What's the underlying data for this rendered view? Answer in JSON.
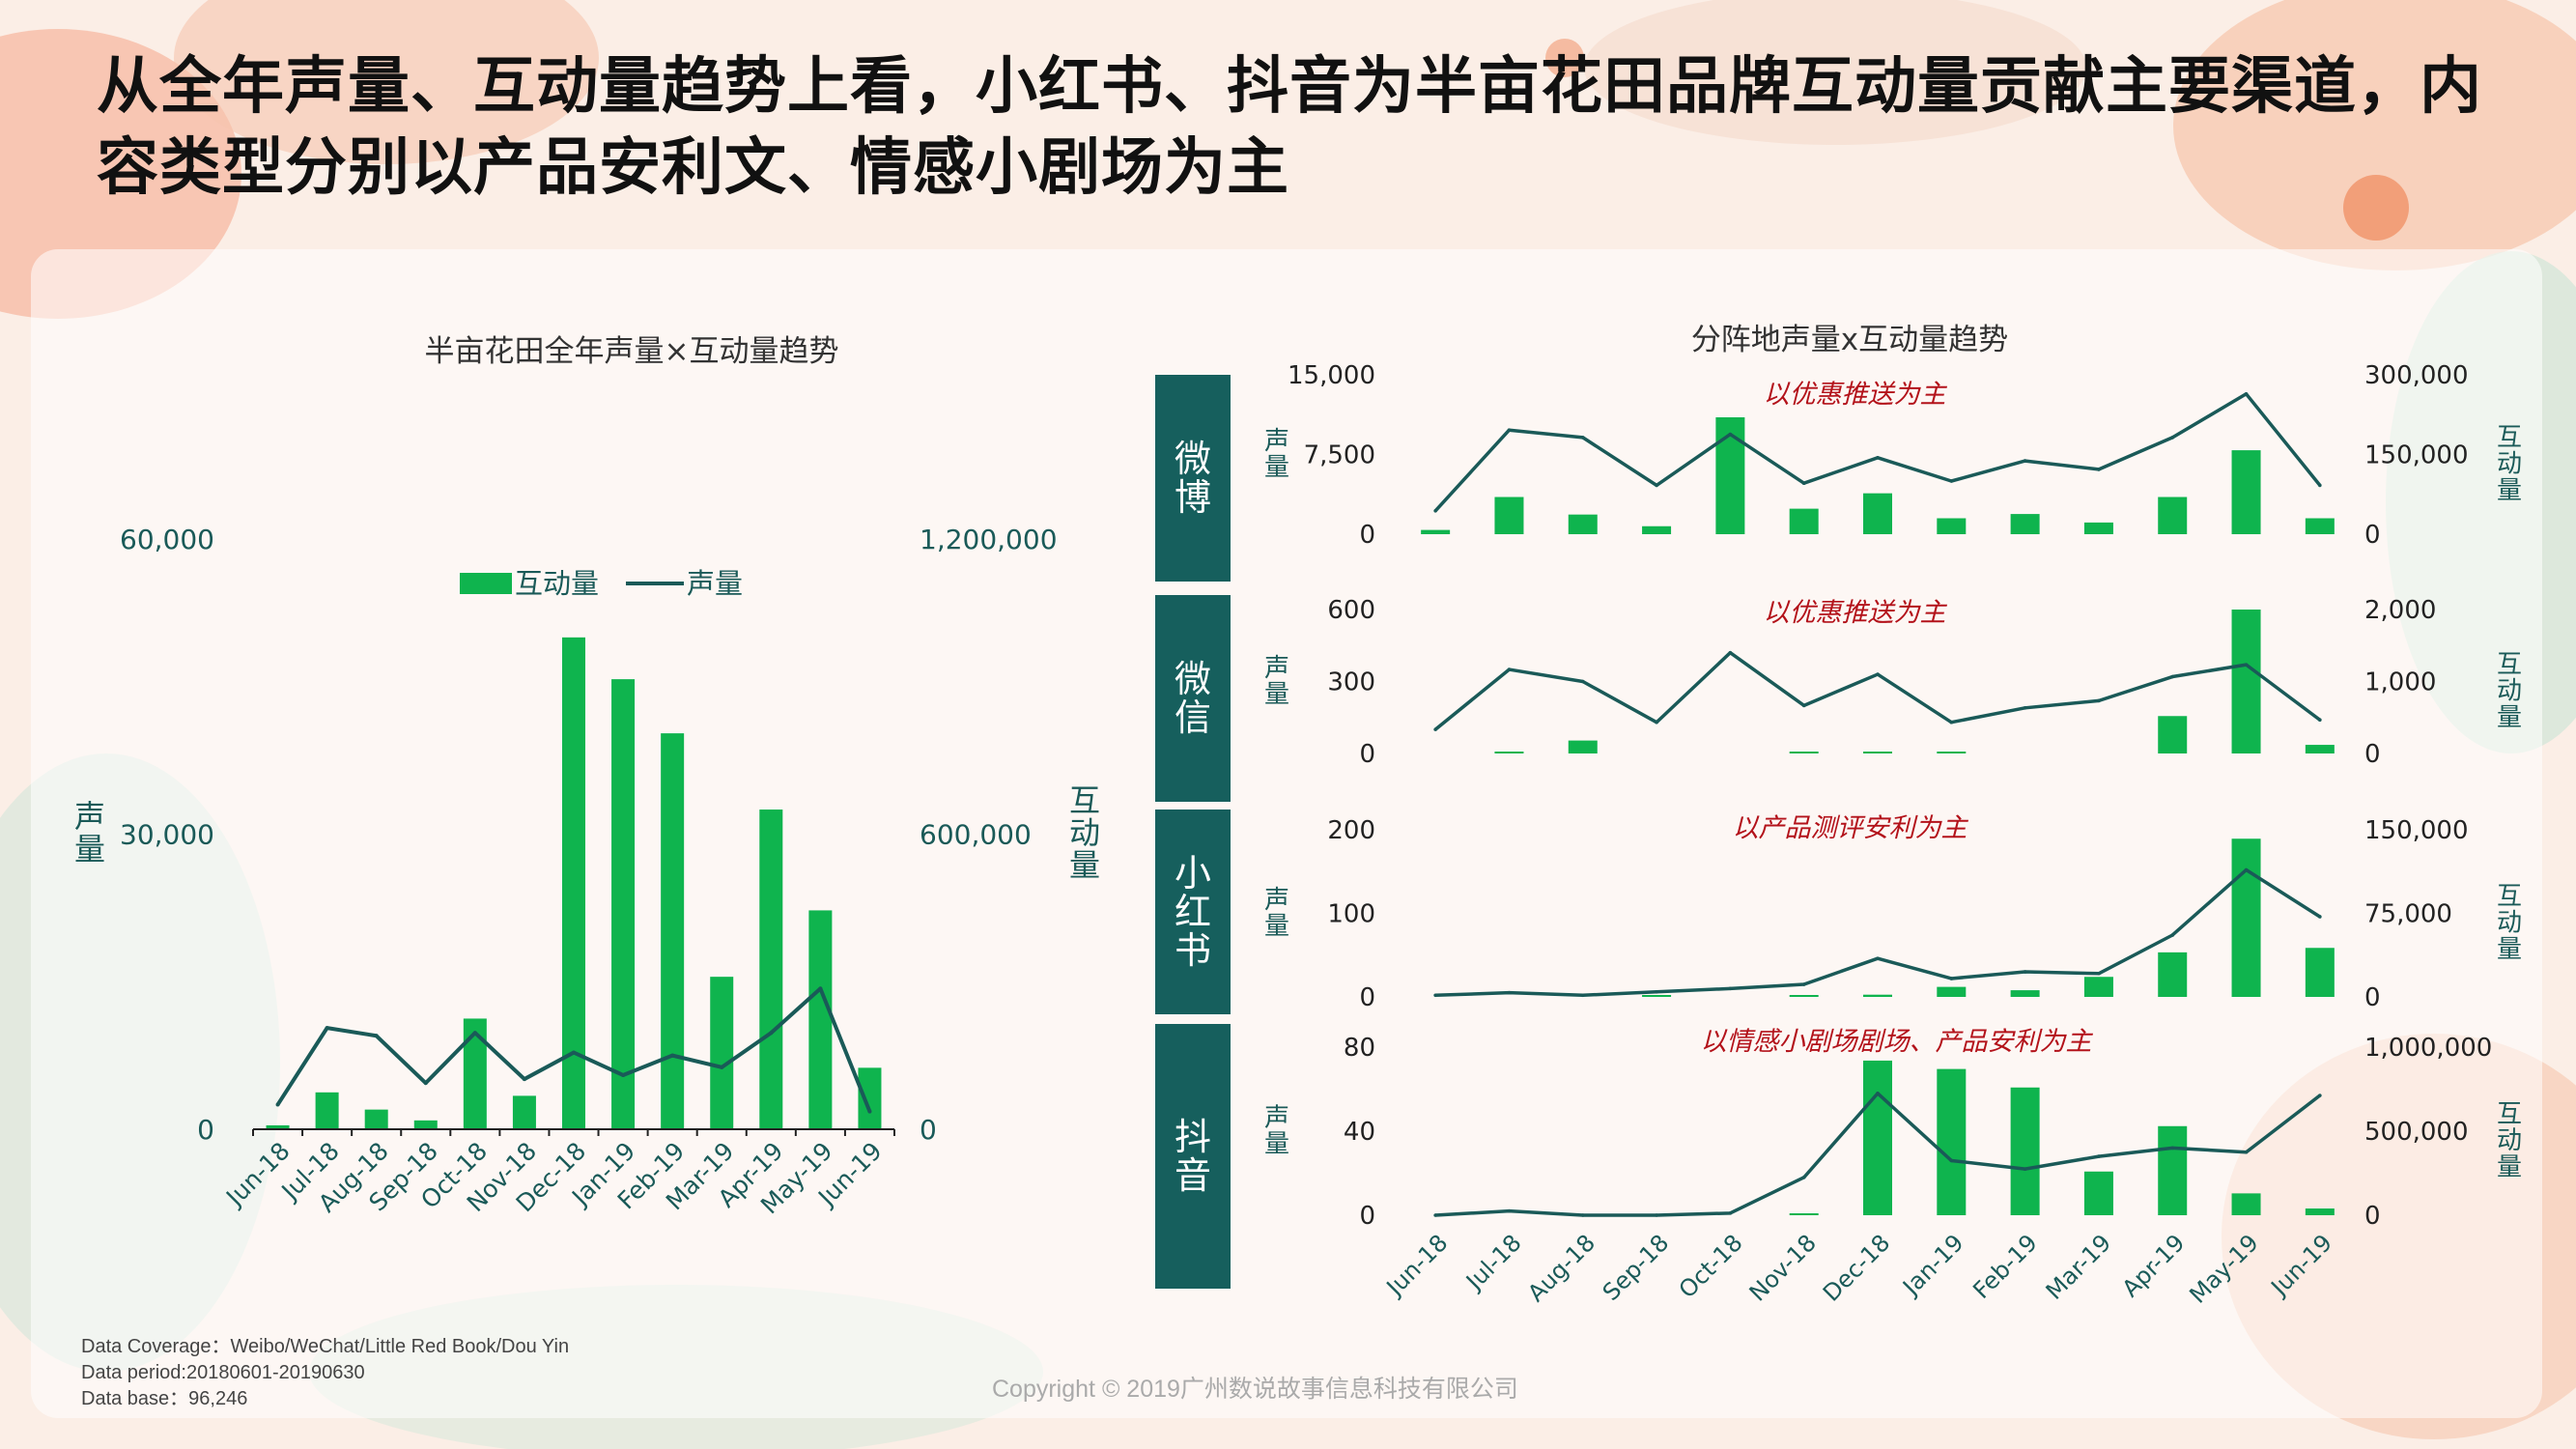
{
  "title": "从全年声量、互动量趋势上看，小红书、抖音为半亩花田品牌互动量贡献主要渠道，内容类型分别以产品安利文、情感小剧场为主",
  "colors": {
    "bar": "#0fb44e",
    "line": "#1a5a58",
    "channel_box": "#165f5d",
    "note": "#b3121a"
  },
  "footnotes": [
    "Data Coverage：Weibo/WeChat/Little Red Book/Dou Yin",
    "Data period:20180601-20190630",
    "Data base：96,246"
  ],
  "copyright": "Copyright © 2019广州数说故事信息科技有限公司",
  "chart_data": [
    {
      "type": "bar+line",
      "title": "半亩花田全年声量×互动量趋势",
      "categories": [
        "Jun-18",
        "Jul-18",
        "Aug-18",
        "Sep-18",
        "Oct-18",
        "Nov-18",
        "Dec-18",
        "Jan-19",
        "Feb-19",
        "Mar-19",
        "Apr-19",
        "May-19",
        "Jun-19"
      ],
      "ylabel_left": "声量",
      "ylabel_right": "互动量",
      "yticks_left": [
        "60,000",
        "30,000",
        "0"
      ],
      "yticks_right": [
        "1,200,000",
        "600,000",
        "0"
      ],
      "ylim_left": [
        0,
        60000
      ],
      "ylim_right": [
        0,
        1200000
      ],
      "legend": [
        "互动量",
        "声量"
      ],
      "series": [
        {
          "name": "互动量",
          "type": "bar",
          "axis": "right",
          "values": [
            8000,
            75000,
            40000,
            18000,
            225000,
            68000,
            1000000,
            915000,
            805000,
            310000,
            650000,
            445000,
            125000
          ]
        },
        {
          "name": "声量",
          "type": "line",
          "axis": "left",
          "values": [
            2500,
            10300,
            9500,
            4700,
            9800,
            5100,
            7800,
            5500,
            7500,
            6300,
            9800,
            14300,
            1800
          ]
        }
      ]
    },
    {
      "type": "bar+line",
      "title": "分阵地声量x互动量趋势",
      "categories": [
        "Jun-18",
        "Jul-18",
        "Aug-18",
        "Sep-18",
        "Oct-18",
        "Nov-18",
        "Dec-18",
        "Jan-19",
        "Feb-19",
        "Mar-19",
        "Apr-19",
        "May-19",
        "Jun-19"
      ],
      "ylabel_left": "声量",
      "ylabel_right": "互动量",
      "panels": [
        {
          "channel": "微博",
          "note": "以优惠推送为主",
          "yticks_left": [
            "15,000",
            "7,500",
            "0"
          ],
          "ylim_left": [
            0,
            15000
          ],
          "yticks_right": [
            "300,000",
            "150,000",
            "0"
          ],
          "ylim_right": [
            0,
            300000
          ],
          "bars": [
            8000,
            70000,
            37000,
            15000,
            220000,
            48000,
            77000,
            30000,
            38000,
            22000,
            70000,
            158000,
            30000
          ],
          "line": [
            2200,
            9800,
            9100,
            4600,
            9400,
            4800,
            7200,
            5000,
            6900,
            6100,
            9100,
            13200,
            4600
          ]
        },
        {
          "channel": "微信",
          "note": "以优惠推送为主",
          "yticks_left": [
            "600",
            "300",
            "0"
          ],
          "ylim_left": [
            0,
            600
          ],
          "yticks_right": [
            "2,000",
            "1,000",
            "0"
          ],
          "ylim_right": [
            0,
            2000
          ],
          "bars": [
            0,
            10,
            180,
            0,
            0,
            10,
            10,
            10,
            0,
            0,
            520,
            2000,
            120
          ],
          "line": [
            100,
            350,
            300,
            130,
            420,
            200,
            330,
            130,
            190,
            220,
            320,
            370,
            140
          ]
        },
        {
          "channel": "小红书",
          "note": "以产品测评安利为主",
          "yticks_left": [
            "200",
            "100",
            "0"
          ],
          "ylim_left": [
            0,
            200
          ],
          "yticks_right": [
            "150,000",
            "75,000",
            "0"
          ],
          "ylim_right": [
            0,
            150000
          ],
          "bars": [
            0,
            0,
            0,
            500,
            0,
            500,
            2000,
            9000,
            6000,
            18000,
            40000,
            142000,
            44000
          ],
          "line": [
            2,
            5,
            2,
            6,
            10,
            15,
            46,
            22,
            30,
            28,
            74,
            152,
            96
          ]
        },
        {
          "channel": "抖音",
          "note": "以情感小剧场剧场、产品安利为主",
          "yticks_left": [
            "80",
            "40",
            "0"
          ],
          "ylim_left": [
            0,
            80
          ],
          "yticks_right": [
            "1,000,000",
            "500,000",
            "0"
          ],
          "ylim_right": [
            0,
            1000000
          ],
          "bars": [
            0,
            0,
            0,
            0,
            0,
            10000,
            920000,
            870000,
            760000,
            260000,
            530000,
            130000,
            40000
          ],
          "line": [
            0,
            2,
            0,
            0,
            1,
            18,
            58,
            26,
            22,
            28,
            32,
            30,
            57
          ]
        }
      ]
    }
  ]
}
